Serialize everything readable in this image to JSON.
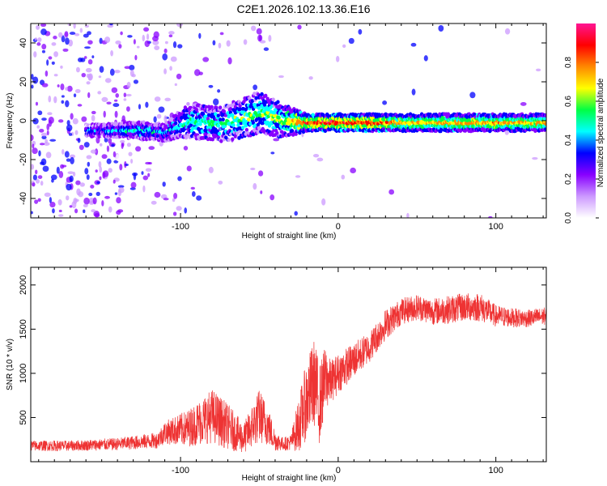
{
  "title": "C2E1.2026.102.13.36.E16",
  "colors": {
    "snr_line": "#ee3333",
    "colormap": [
      "#ffffff",
      "#cc99ff",
      "#8800ff",
      "#0000ff",
      "#00ffff",
      "#00ff44",
      "#ffff00",
      "#ff8800",
      "#ff0000",
      "#ff1493"
    ]
  },
  "chart_data": [
    {
      "type": "heatmap",
      "id": "spectrogram",
      "xlabel": "Height of straight line (km)",
      "ylabel": "Frequency (Hz)",
      "xlim": [
        -195,
        132
      ],
      "ylim": [
        -50,
        50
      ],
      "xticks": [
        -100,
        0,
        100
      ],
      "yticks": [
        -40,
        -20,
        0,
        20,
        40
      ],
      "colorbar": {
        "label": "Normalized spectral amplitude",
        "range": [
          0,
          1
        ],
        "ticks": [
          0.0,
          0.2,
          0.4,
          0.6,
          0.8
        ]
      },
      "ridge": [
        {
          "x": -150,
          "center_hz": -5,
          "width_hz": 3,
          "amplitude": 0.35
        },
        {
          "x": -125,
          "center_hz": -5,
          "width_hz": 4,
          "amplitude": 0.45
        },
        {
          "x": -110,
          "center_hz": -6,
          "width_hz": 4,
          "amplitude": 0.4
        },
        {
          "x": -95,
          "center_hz": 0,
          "width_hz": 8,
          "amplitude": 0.5
        },
        {
          "x": -75,
          "center_hz": -2,
          "width_hz": 8,
          "amplitude": 0.5
        },
        {
          "x": -50,
          "center_hz": 4,
          "width_hz": 10,
          "amplitude": 0.55
        },
        {
          "x": -35,
          "center_hz": 0,
          "width_hz": 8,
          "amplitude": 0.6
        },
        {
          "x": -20,
          "center_hz": -1,
          "width_hz": 4,
          "amplitude": 0.85
        },
        {
          "x": 0,
          "center_hz": -1,
          "width_hz": 4,
          "amplitude": 0.9
        },
        {
          "x": 50,
          "center_hz": -1,
          "width_hz": 4,
          "amplitude": 0.7
        },
        {
          "x": 90,
          "center_hz": -1,
          "width_hz": 4,
          "amplitude": 0.75
        },
        {
          "x": 130,
          "center_hz": -1,
          "width_hz": 4,
          "amplitude": 0.7
        }
      ]
    },
    {
      "type": "line",
      "id": "snr",
      "xlabel": "Height of straight line (km)",
      "ylabel": "SNR (10 * v/v)",
      "xlim": [
        -195,
        132
      ],
      "ylim": [
        0,
        2200
      ],
      "xticks": [
        -100,
        0,
        100
      ],
      "yticks": [
        500,
        1000,
        1500,
        2000
      ],
      "envelope": {
        "x": [
          -195,
          -170,
          -140,
          -115,
          -110,
          -95,
          -80,
          -70,
          -60,
          -50,
          -45,
          -40,
          -35,
          -30,
          -25,
          -20,
          -15,
          -12,
          -8,
          -5,
          0,
          10,
          20,
          30,
          40,
          50,
          60,
          70,
          80,
          90,
          100,
          110,
          120,
          132
        ],
        "mean": [
          180,
          180,
          200,
          240,
          330,
          380,
          520,
          400,
          260,
          520,
          420,
          240,
          200,
          220,
          420,
          700,
          900,
          650,
          950,
          900,
          1000,
          1150,
          1300,
          1550,
          1700,
          1750,
          1700,
          1720,
          1750,
          1750,
          1650,
          1630,
          1620,
          1650
        ],
        "noise": [
          120,
          120,
          140,
          180,
          260,
          420,
          620,
          520,
          340,
          620,
          480,
          240,
          150,
          180,
          620,
          900,
          1000,
          900,
          750,
          500,
          450,
          400,
          350,
          350,
          300,
          300,
          300,
          320,
          320,
          330,
          250,
          220,
          200,
          200
        ]
      }
    }
  ]
}
